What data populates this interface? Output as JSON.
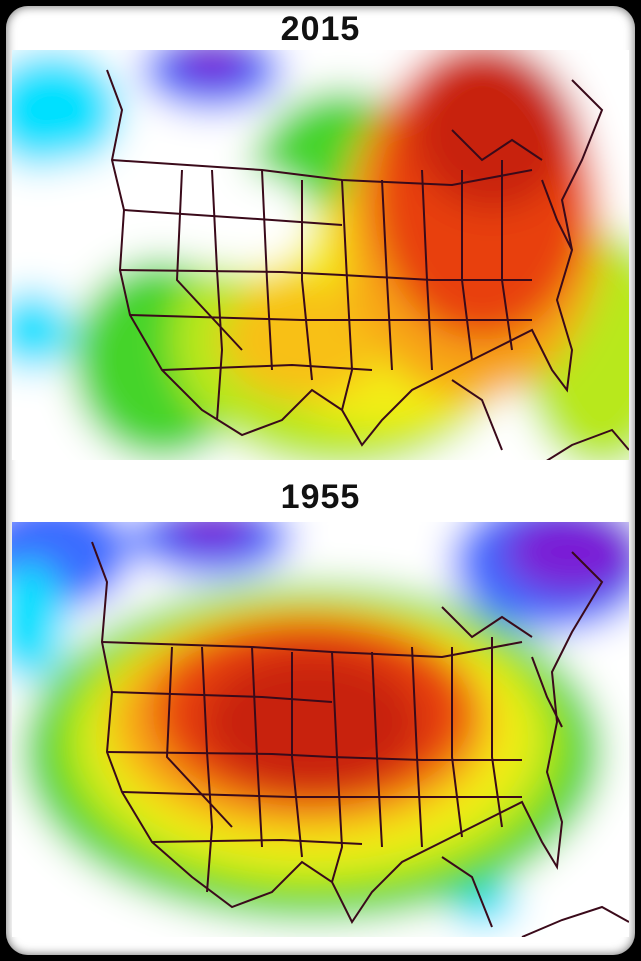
{
  "maps": [
    {
      "title": "2015",
      "palette": {
        "white": "#ffffff",
        "cyan": "#00e0ff",
        "blue": "#3a6cff",
        "purple": "#7a1fd6",
        "green": "#44d42a",
        "yellowgreen": "#b8e81f",
        "yellow": "#f3ee12",
        "orange": "#f8a515",
        "red": "#e8400f",
        "darkred": "#c8200a"
      }
    },
    {
      "title": "1955",
      "palette": {
        "white": "#ffffff",
        "cyan": "#00e0ff",
        "blue": "#3a6cff",
        "purple": "#7a1fd6",
        "green": "#44d42a",
        "yellowgreen": "#b8e81f",
        "yellow": "#f3ee12",
        "orange": "#f8a515",
        "red": "#e8400f",
        "darkred": "#c8200a"
      }
    }
  ]
}
